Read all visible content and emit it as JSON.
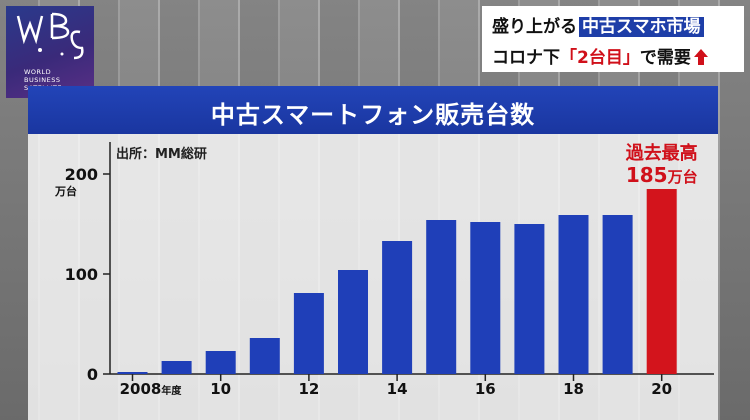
{
  "logo": {
    "icon": "wbs-logo-icon",
    "text": "WORLD\nBUSINESS\nSATELLITE"
  },
  "topic": {
    "line1_prefix": "盛り上がる",
    "line1_highlight": "中古スマホ市場",
    "line2_prefix": "コロナ下",
    "line2_highlight": "「2台目」",
    "line2_suffix": "で需要",
    "arrow_icon": "up-arrow-icon"
  },
  "colors": {
    "bar": "#1f3fb8",
    "highlight_bar": "#d3141c",
    "banner": "#1e3ea8",
    "annotation": "#d0101a"
  },
  "chart_data": {
    "type": "bar",
    "title": "中古スマートフォン販売台数",
    "source": "出所：MM総研",
    "ylabel_unit": "万台",
    "ylim": [
      0,
      200
    ],
    "yticks": [
      0,
      100,
      200
    ],
    "ytick_labels": [
      "0",
      "100",
      "200"
    ],
    "categories": [
      "2008",
      "2009",
      "2010",
      "2011",
      "2012",
      "2013",
      "2014",
      "2015",
      "2016",
      "2017",
      "2018",
      "2019",
      "2020"
    ],
    "values": [
      2,
      13,
      23,
      36,
      81,
      104,
      133,
      154,
      152,
      150,
      159,
      159,
      185
    ],
    "highlight_index": 12,
    "xtick_labels": [
      {
        "index": 0,
        "text": "2008",
        "suffix": "年度"
      },
      {
        "index": 2,
        "text": "10",
        "suffix": ""
      },
      {
        "index": 4,
        "text": "12",
        "suffix": ""
      },
      {
        "index": 6,
        "text": "14",
        "suffix": ""
      },
      {
        "index": 8,
        "text": "16",
        "suffix": ""
      },
      {
        "index": 10,
        "text": "18",
        "suffix": ""
      },
      {
        "index": 12,
        "text": "20",
        "suffix": ""
      }
    ],
    "annotation": {
      "line1": "過去最高",
      "value": "185",
      "unit": "万台"
    },
    "grid": false
  }
}
